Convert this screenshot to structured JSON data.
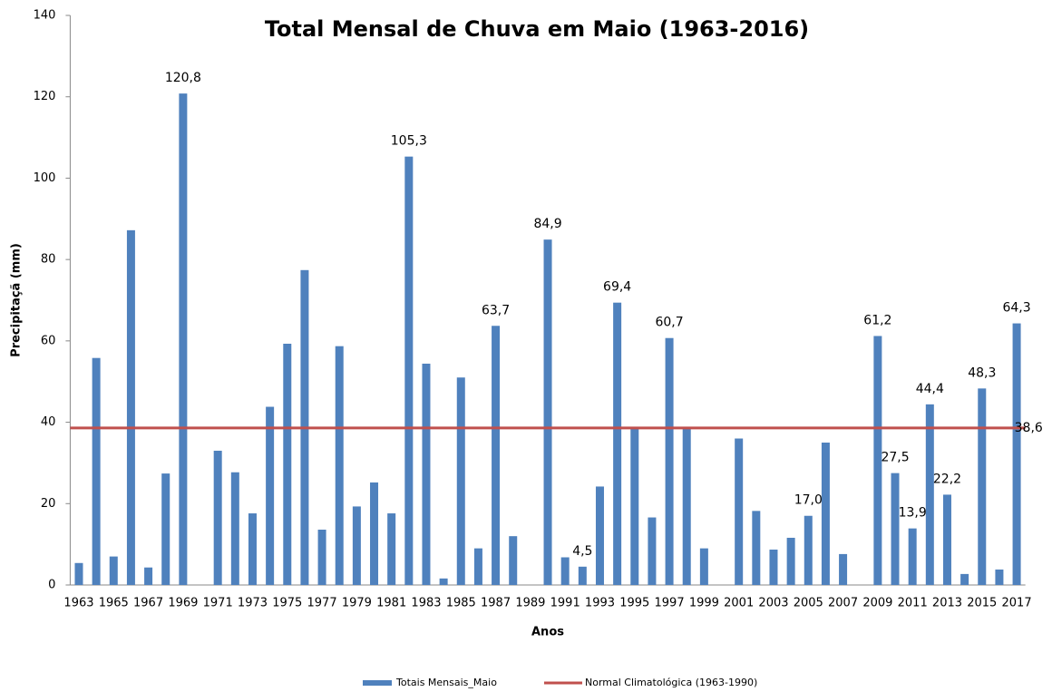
{
  "chart_data": {
    "type": "bar",
    "title": "Total Mensal de Chuva em Maio (1963-2016)",
    "x_label": "Anos",
    "y_label": "Precipitaçã (mm)",
    "categories": [
      "1963",
      null,
      "1965",
      null,
      "1967",
      null,
      "1969",
      null,
      "1971",
      null,
      "1973",
      null,
      "1975",
      null,
      "1977",
      null,
      "1979",
      null,
      "1981",
      null,
      "1983",
      null,
      "1985",
      null,
      "1987",
      null,
      "1989",
      null,
      "1991",
      null,
      "1993",
      null,
      "1995",
      null,
      "1997",
      null,
      "1999",
      null,
      "2001",
      null,
      "2003",
      null,
      "2005",
      null,
      "2007",
      null,
      "2009",
      null,
      "2011",
      null,
      "2013",
      null,
      "2015",
      null,
      "2017"
    ],
    "series": [
      {
        "name": "Totais Mensais_Maio",
        "color": "#4f81bd",
        "values": [
          5.4,
          55.8,
          7.0,
          87.2,
          4.3,
          27.4,
          120.8,
          null,
          33.0,
          27.7,
          17.6,
          43.8,
          59.3,
          77.4,
          13.6,
          58.7,
          19.3,
          25.2,
          17.6,
          105.3,
          54.4,
          1.6,
          51.0,
          9.0,
          63.7,
          12.0,
          null,
          84.9,
          6.8,
          4.5,
          24.2,
          69.4,
          38.5,
          16.6,
          60.7,
          38.5,
          9.0,
          null,
          36.0,
          18.2,
          8.7,
          11.6,
          17.0,
          35.0,
          7.6,
          null,
          61.2,
          27.5,
          13.9,
          44.4,
          22.2,
          2.7,
          48.3,
          3.8,
          64.3
        ],
        "value_labels": [
          null,
          null,
          null,
          null,
          null,
          null,
          "120,8",
          null,
          null,
          null,
          null,
          null,
          null,
          null,
          null,
          null,
          null,
          null,
          null,
          "105,3",
          null,
          null,
          null,
          null,
          "63,7",
          null,
          null,
          "84,9",
          null,
          "4,5",
          null,
          "69,4",
          null,
          null,
          "60,7",
          null,
          null,
          null,
          null,
          null,
          null,
          null,
          "17,0",
          null,
          null,
          null,
          "61,2",
          "27,5",
          "13,9",
          "44,4",
          "22,2",
          null,
          "48,3",
          null,
          "64,3"
        ]
      },
      {
        "name": "Normal Climatológica (1963-1990)",
        "color": "#c0504d",
        "type": "line",
        "value": 38.6,
        "value_label": "38,6"
      }
    ],
    "ylim": [
      0,
      140
    ],
    "yticks": [
      0,
      20,
      40,
      60,
      80,
      100,
      120,
      140
    ],
    "grid": false
  }
}
